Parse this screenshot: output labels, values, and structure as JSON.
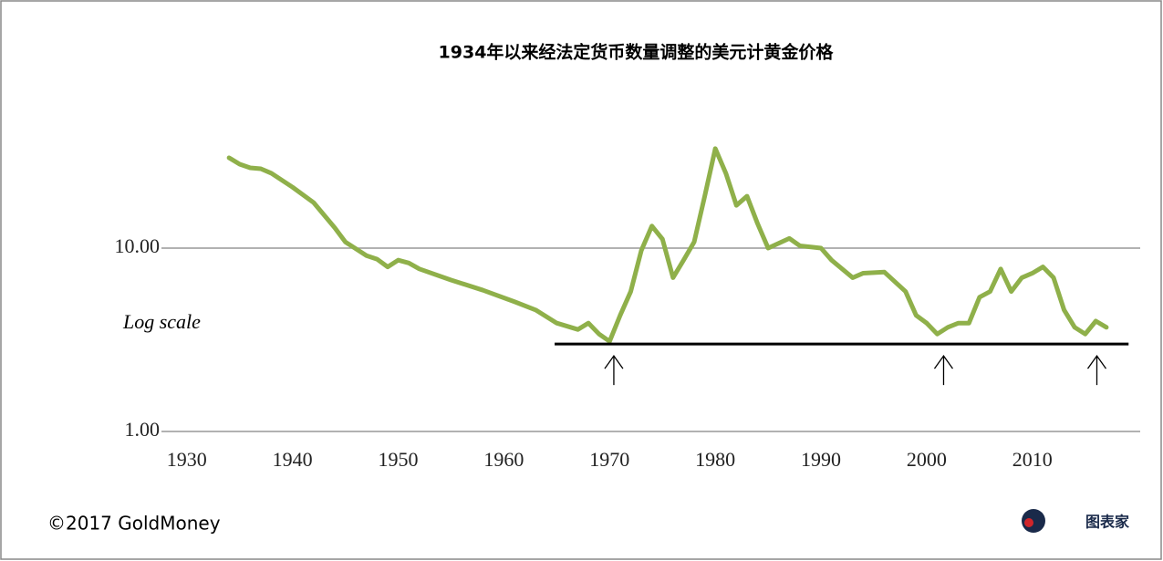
{
  "chart_data": {
    "type": "line",
    "title": "1934年以来经法定货币数量调整的美元计黄金价格",
    "annotation": "Log scale",
    "source": "©2017 GoldMoney",
    "watermark": "图表家",
    "log_scale": true,
    "grid": true,
    "xlim": [
      1927.6,
      2020.2
    ],
    "ylim": [
      1,
      40
    ],
    "xticks": [
      1930,
      1940,
      1950,
      1960,
      1970,
      1980,
      1990,
      2000,
      2010
    ],
    "yticks": [
      {
        "value": 1,
        "label": "1.00"
      },
      {
        "value": 10,
        "label": "10.00"
      }
    ],
    "support_line": {
      "value": 3,
      "x": [
        1964.8,
        2019.1
      ]
    },
    "arrows_x": [
      1970.4,
      2001.6,
      2016.1
    ],
    "series": [
      {
        "color": "#8fb04a",
        "x": [
          1934,
          1935,
          1936,
          1937,
          1938,
          1940,
          1942,
          1944,
          1945,
          1947,
          1948,
          1949,
          1950,
          1951,
          1952,
          1955,
          1958,
          1961,
          1963,
          1965,
          1967,
          1968,
          1969,
          1970,
          1971,
          1972,
          1973,
          1974,
          1975,
          1976,
          1977,
          1978,
          1979,
          1980,
          1981,
          1982,
          1983,
          1984,
          1985,
          1987,
          1988,
          1990,
          1991,
          1993,
          1994,
          1996,
          1998,
          1999,
          2000,
          2001,
          2002,
          2003,
          2004,
          2005,
          2006,
          2007,
          2008,
          2009,
          2010,
          2011,
          2012,
          2013,
          2014,
          2015,
          2016,
          2017
        ],
        "values": [
          31.1,
          28.7,
          27.4,
          27.1,
          25.6,
          21.5,
          17.7,
          12.9,
          10.8,
          9.1,
          8.7,
          7.9,
          8.6,
          8.3,
          7.7,
          6.7,
          5.9,
          5.1,
          4.6,
          3.9,
          3.6,
          3.9,
          3.4,
          3.1,
          4.3,
          5.8,
          9.7,
          13.2,
          11.2,
          6.9,
          8.6,
          10.8,
          19.2,
          34.9,
          25.6,
          17.1,
          19.2,
          13.6,
          10,
          11.3,
          10.3,
          10,
          8.6,
          6.9,
          7.3,
          7.4,
          5.8,
          4.3,
          3.9,
          3.4,
          3.7,
          3.9,
          3.9,
          5.4,
          5.8,
          7.7,
          5.8,
          6.9,
          7.3,
          7.9,
          6.9,
          4.6,
          3.7,
          3.4,
          4.0,
          3.7
        ]
      }
    ]
  }
}
